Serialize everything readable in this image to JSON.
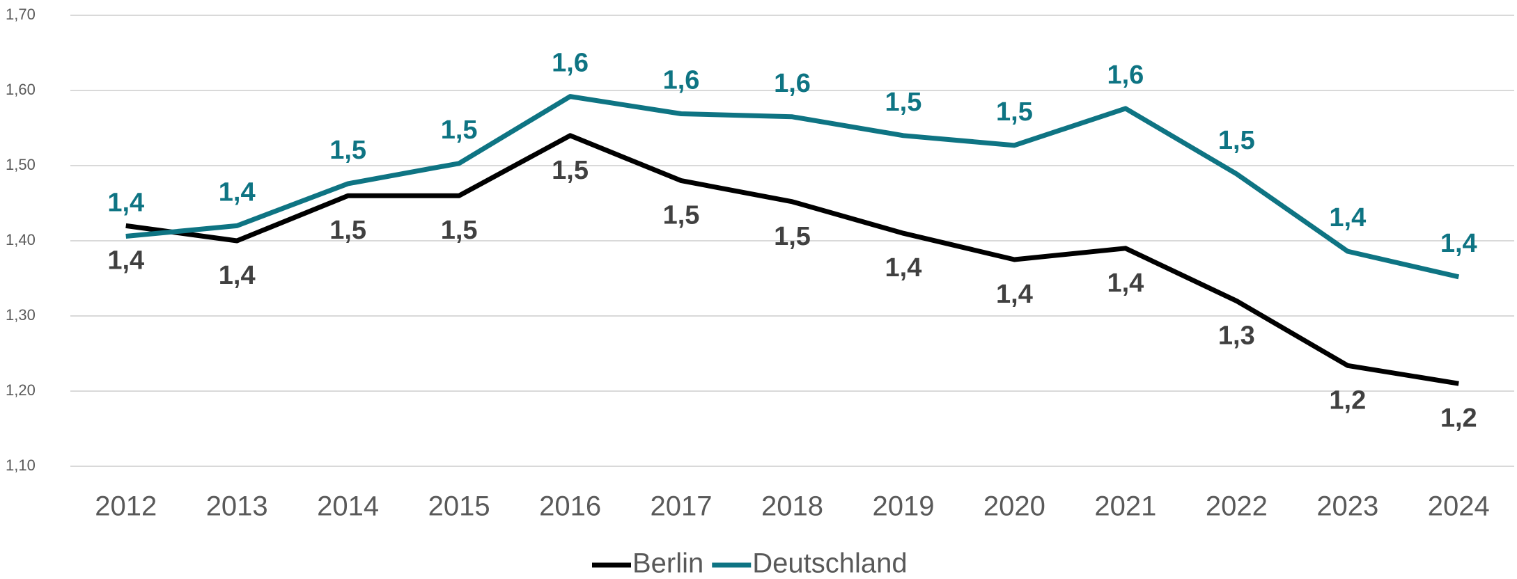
{
  "chart_data": {
    "type": "line",
    "categories": [
      "2012",
      "2013",
      "2014",
      "2015",
      "2016",
      "2017",
      "2018",
      "2019",
      "2020",
      "2021",
      "2022",
      "2023",
      "2024"
    ],
    "series": [
      {
        "name": "Berlin",
        "color": "#000000",
        "label_color": "#404040",
        "values": [
          1.42,
          1.4,
          1.46,
          1.46,
          1.54,
          1.48,
          1.452,
          1.41,
          1.375,
          1.39,
          1.32,
          1.234,
          1.21
        ],
        "value_labels": [
          "1,4",
          "1,4",
          "1,5",
          "1,5",
          "1,5",
          "1,5",
          "1,5",
          "1,4",
          "1,4",
          "1,4",
          "1,3",
          "1,2",
          "1,2"
        ]
      },
      {
        "name": "Deutschland",
        "color": "#0e7483",
        "label_color": "#0e7483",
        "values": [
          1.406,
          1.42,
          1.476,
          1.503,
          1.592,
          1.569,
          1.565,
          1.54,
          1.527,
          1.576,
          1.489,
          1.386,
          1.352
        ],
        "value_labels": [
          "1,4",
          "1,4",
          "1,5",
          "1,5",
          "1,6",
          "1,6",
          "1,6",
          "1,5",
          "1,5",
          "1,6",
          "1,5",
          "1,4",
          "1,4"
        ]
      }
    ],
    "ylim": [
      1.1,
      1.7
    ],
    "yticks": [
      {
        "value": 1.1,
        "label": "1,10"
      },
      {
        "value": 1.2,
        "label": "1,20"
      },
      {
        "value": 1.3,
        "label": "1,30"
      },
      {
        "value": 1.4,
        "label": "1,40"
      },
      {
        "value": 1.5,
        "label": "1,50"
      },
      {
        "value": 1.6,
        "label": "1,60"
      },
      {
        "value": 1.7,
        "label": "1,70"
      }
    ],
    "grid": true,
    "legend": "bottom"
  }
}
